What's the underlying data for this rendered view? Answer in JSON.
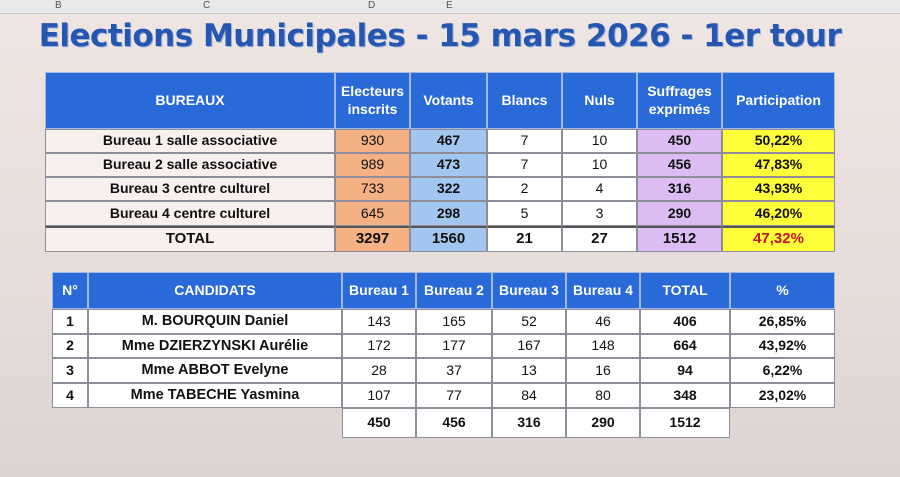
{
  "column_letters": [
    "B",
    "C",
    "D",
    "E"
  ],
  "title": "Elections Municipales - 15 mars 2026 - 1er tour",
  "table1": {
    "header": [
      "BUREAUX",
      "Electeurs inscrits",
      "Votants",
      "Blancs",
      "Nuls",
      "Suffrages exprimés",
      "Participation"
    ],
    "rows": [
      [
        "Bureau 1 salle associative",
        930,
        467,
        7,
        10,
        450,
        "50,22%"
      ],
      [
        "Bureau 2 salle associative",
        989,
        473,
        7,
        10,
        456,
        "47,83%"
      ],
      [
        "Bureau 3 centre culturel",
        733,
        322,
        2,
        4,
        316,
        "43,93%"
      ],
      [
        "Bureau 4 centre culturel",
        645,
        298,
        5,
        3,
        290,
        "46,20%"
      ]
    ],
    "total": [
      "TOTAL",
      3297,
      1560,
      21,
      27,
      1512,
      "47,32%"
    ]
  },
  "table2": {
    "header": [
      "N°",
      "CANDIDATS",
      "Bureau 1",
      "Bureau 2",
      "Bureau 3",
      "Bureau 4",
      "TOTAL",
      "%"
    ],
    "rows": [
      [
        1,
        "M. BOURQUIN Daniel",
        143,
        165,
        52,
        46,
        406,
        "26,85%"
      ],
      [
        2,
        "Mme DZIERZYNSKI Aurélie",
        172,
        177,
        167,
        148,
        664,
        "43,92%"
      ],
      [
        3,
        "Mme ABBOT Evelyne",
        28,
        37,
        13,
        16,
        94,
        "6,22%"
      ],
      [
        4,
        "Mme TABECHE Yasmina",
        107,
        77,
        84,
        80,
        348,
        "23,02%"
      ]
    ],
    "totals": [
      450,
      456,
      316,
      290,
      1512
    ]
  }
}
